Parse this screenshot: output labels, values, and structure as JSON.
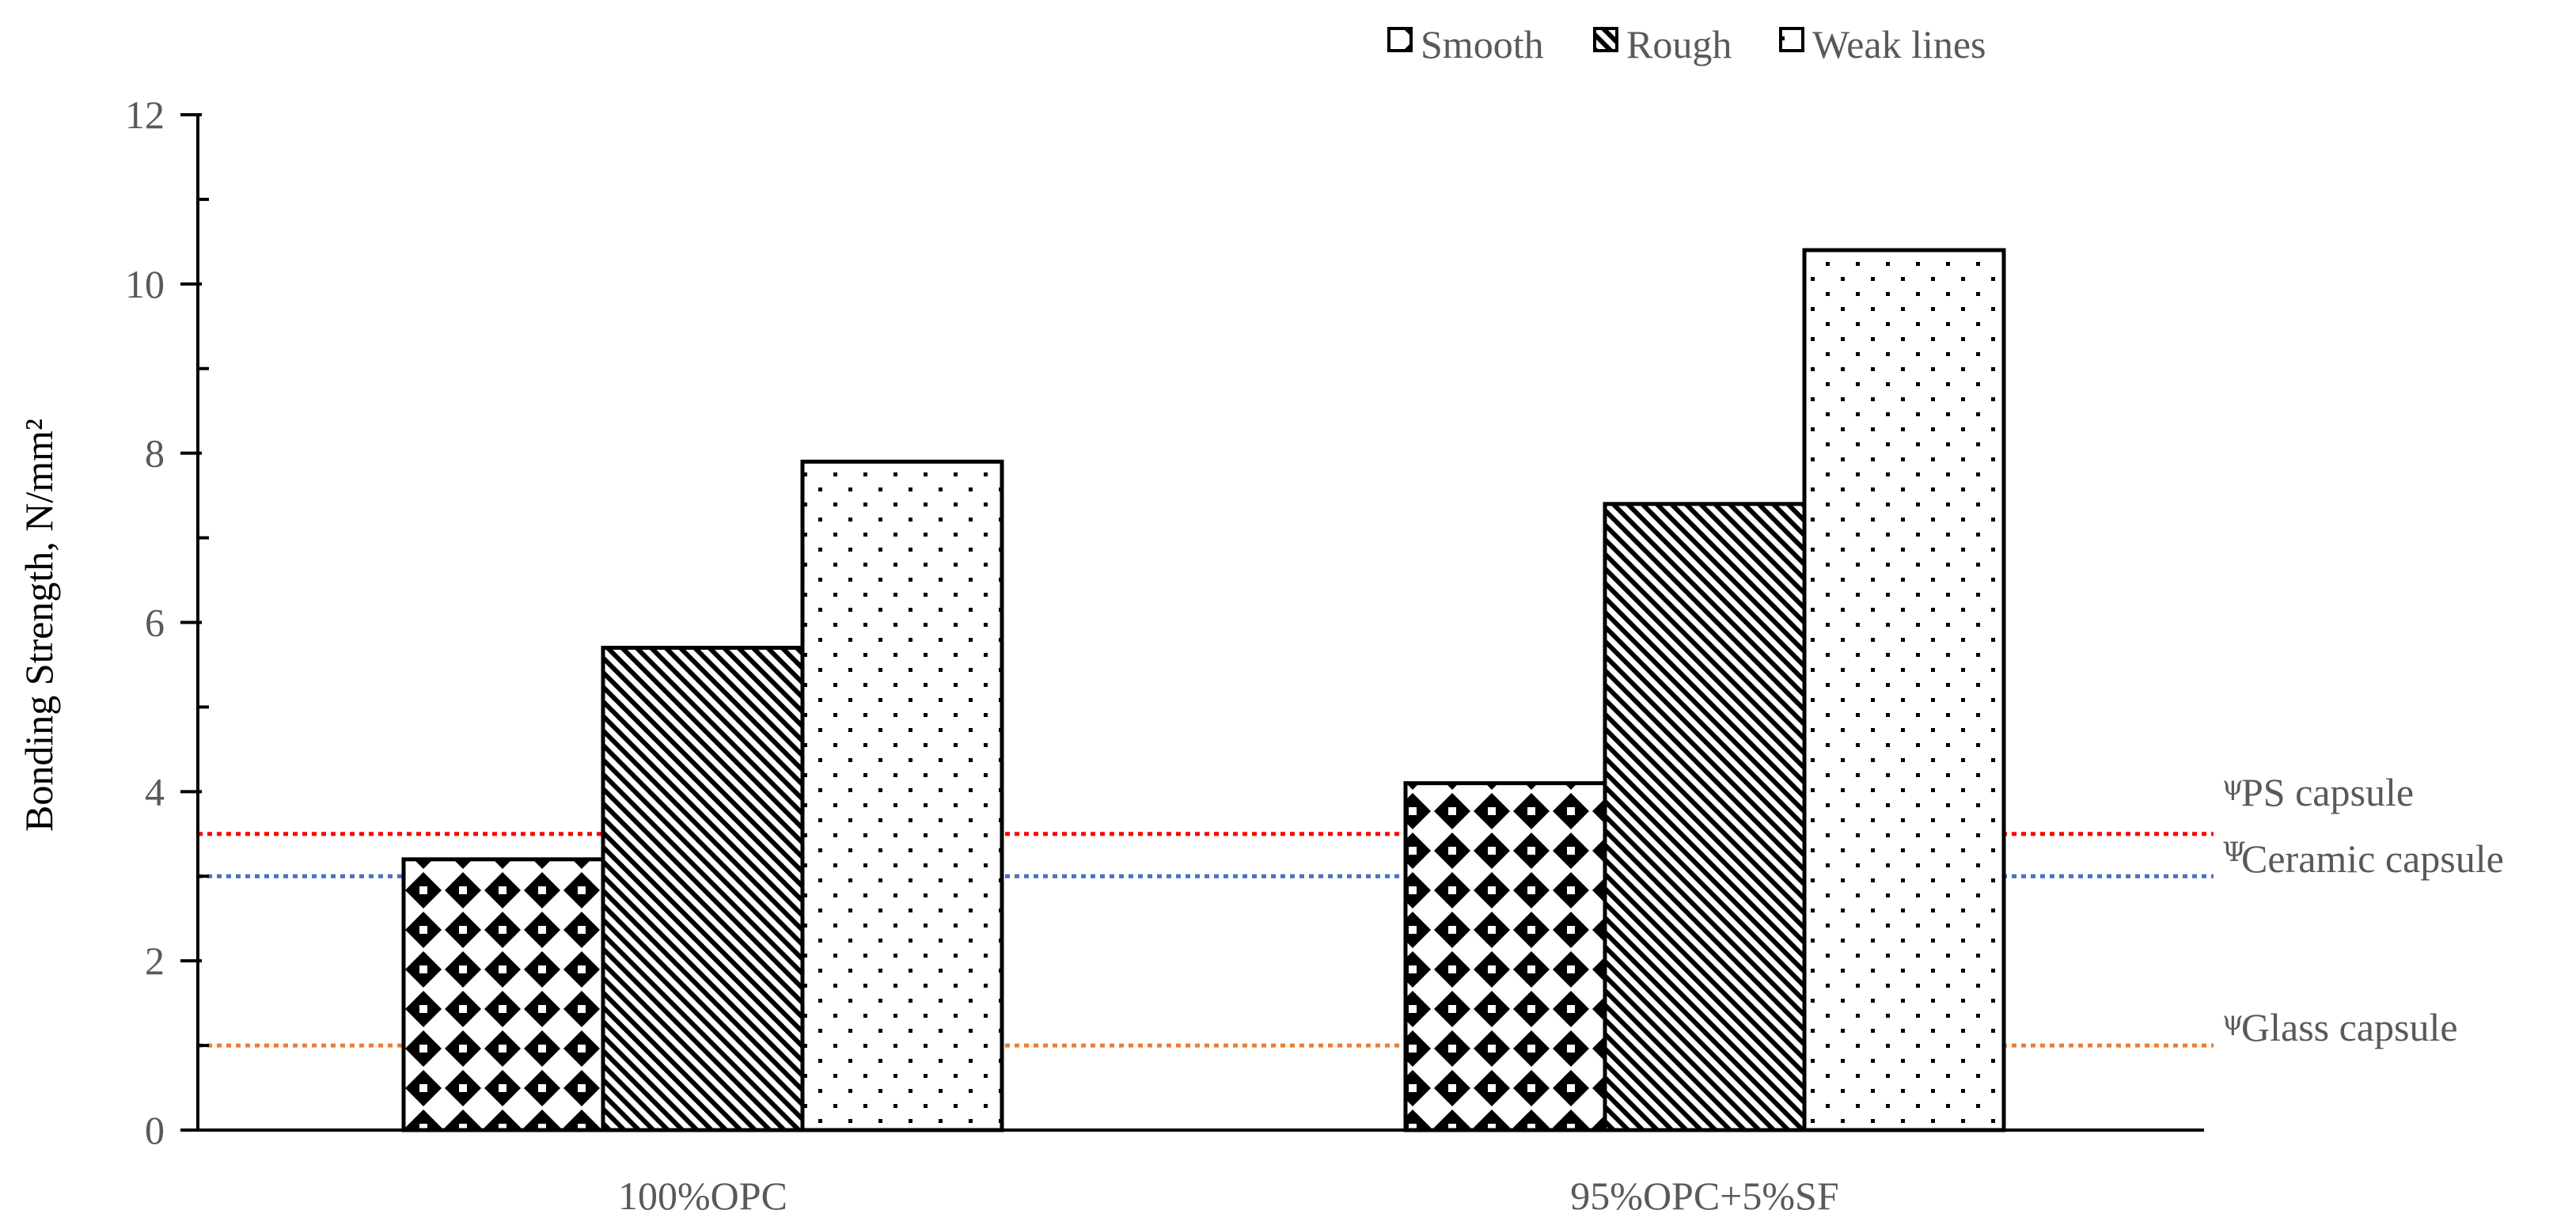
{
  "chart_data": {
    "type": "bar",
    "categories": [
      "100%OPC",
      "95%OPC+5%SF"
    ],
    "series": [
      {
        "name": "Smooth",
        "values": [
          3.2,
          4.1
        ],
        "pattern": "diamond-check"
      },
      {
        "name": "Rough",
        "values": [
          5.7,
          7.4
        ],
        "pattern": "diagonal-stripes"
      },
      {
        "name": "Weak lines",
        "values": [
          7.9,
          10.4
        ],
        "pattern": "dots"
      }
    ],
    "xlabel": "",
    "ylabel": "Bonding Strength, N/mm²",
    "ylim": [
      0,
      12
    ],
    "yticks": [
      0,
      2,
      4,
      6,
      8,
      10,
      12
    ],
    "legend_position": "top-right",
    "grid": false,
    "reference_lines": [
      {
        "label": "PS capsule",
        "symbol": "ψ",
        "value": 3.5,
        "color": "#ff0000"
      },
      {
        "label": "Ceramic capsule",
        "symbol": "Ψ",
        "value": 3.0,
        "color": "#4472c4"
      },
      {
        "label": "Glass capsule",
        "symbol": "ψ",
        "value": 1.0,
        "color": "#ed7d31"
      }
    ]
  }
}
